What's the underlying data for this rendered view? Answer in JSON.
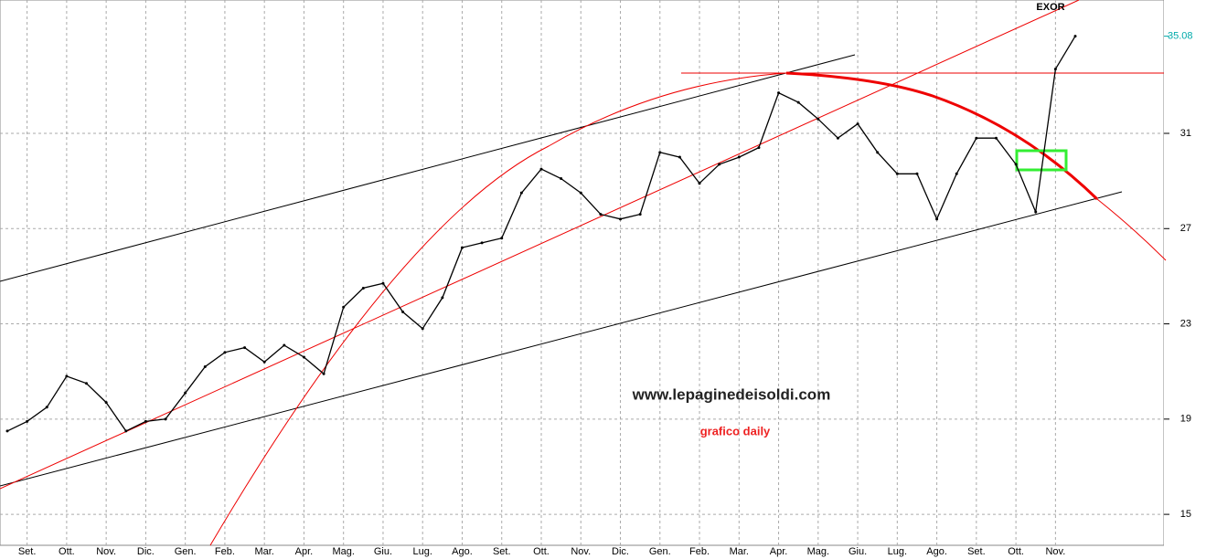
{
  "chart_data": {
    "type": "line",
    "title": "EXOR",
    "color": "#000000",
    "categories": [
      null,
      "Set.",
      null,
      "Ott.",
      null,
      "Nov.",
      null,
      "Dic.",
      null,
      "Gen.",
      null,
      "Feb.",
      null,
      "Mar.",
      null,
      "Apr.",
      null,
      "Mag.",
      null,
      "Giu.",
      null,
      "Lug.",
      null,
      "Ago.",
      null,
      "Set.",
      null,
      "Ott.",
      null,
      "Nov.",
      null,
      "Dic.",
      null,
      "Gen.",
      null,
      "Feb.",
      null,
      "Mar.",
      null,
      "Apr.",
      null,
      "Mag.",
      null,
      "Giu.",
      null,
      "Lug.",
      null,
      "Ago.",
      null,
      "Set.",
      null,
      "Ott.",
      null,
      "Nov.",
      null
    ],
    "values": [
      18.5,
      18.9,
      19.5,
      20.8,
      20.5,
      19.7,
      18.5,
      18.9,
      19.0,
      20.1,
      21.2,
      21.8,
      22.0,
      21.4,
      22.1,
      21.6,
      20.9,
      23.7,
      24.5,
      24.7,
      23.5,
      22.8,
      24.1,
      26.2,
      26.4,
      26.6,
      28.5,
      29.5,
      29.1,
      28.5,
      27.6,
      27.4,
      27.6,
      30.2,
      30.0,
      28.9,
      29.7,
      30.0,
      30.4,
      32.7,
      32.3,
      31.6,
      30.8,
      31.4,
      30.2,
      29.3,
      29.3,
      27.4,
      29.3,
      30.8,
      30.8,
      29.7,
      27.7,
      33.7,
      35.08
    ],
    "ylim": [
      13.7,
      36.6
    ],
    "yticks": [
      15,
      19,
      23,
      27,
      31
    ],
    "grid": true,
    "last_price_label": "35.08",
    "annotations": [
      "www.lepaginedeisoldi.com",
      "grafico daily"
    ]
  }
}
